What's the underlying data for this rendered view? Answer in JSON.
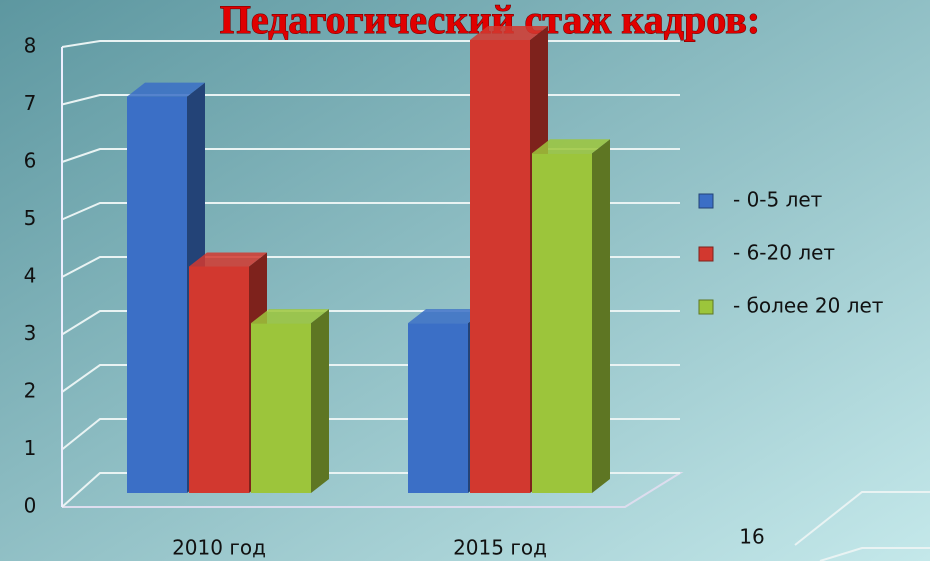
{
  "chart_data": [
    {
      "type": "bar3d",
      "title": "Педагогический стаж кадров:",
      "categories": [
        "2010 год",
        "2015 год"
      ],
      "series": [
        {
          "name": "- 0-5 лет",
          "color": "#3b6fc6",
          "values": [
            7,
            3
          ]
        },
        {
          "name": "- 6-20 лет",
          "color": "#d2382f",
          "values": [
            4,
            8
          ]
        },
        {
          "name": "- более 20 лет",
          "color": "#9cc53b",
          "values": [
            3,
            6
          ]
        }
      ],
      "ylim": [
        0,
        8
      ],
      "yticks": [
        0,
        1,
        2,
        3,
        4,
        5,
        6,
        7,
        8
      ],
      "grid": true,
      "legend": "right"
    },
    {
      "type": "bar3d",
      "yticks": [
        16
      ]
    }
  ]
}
